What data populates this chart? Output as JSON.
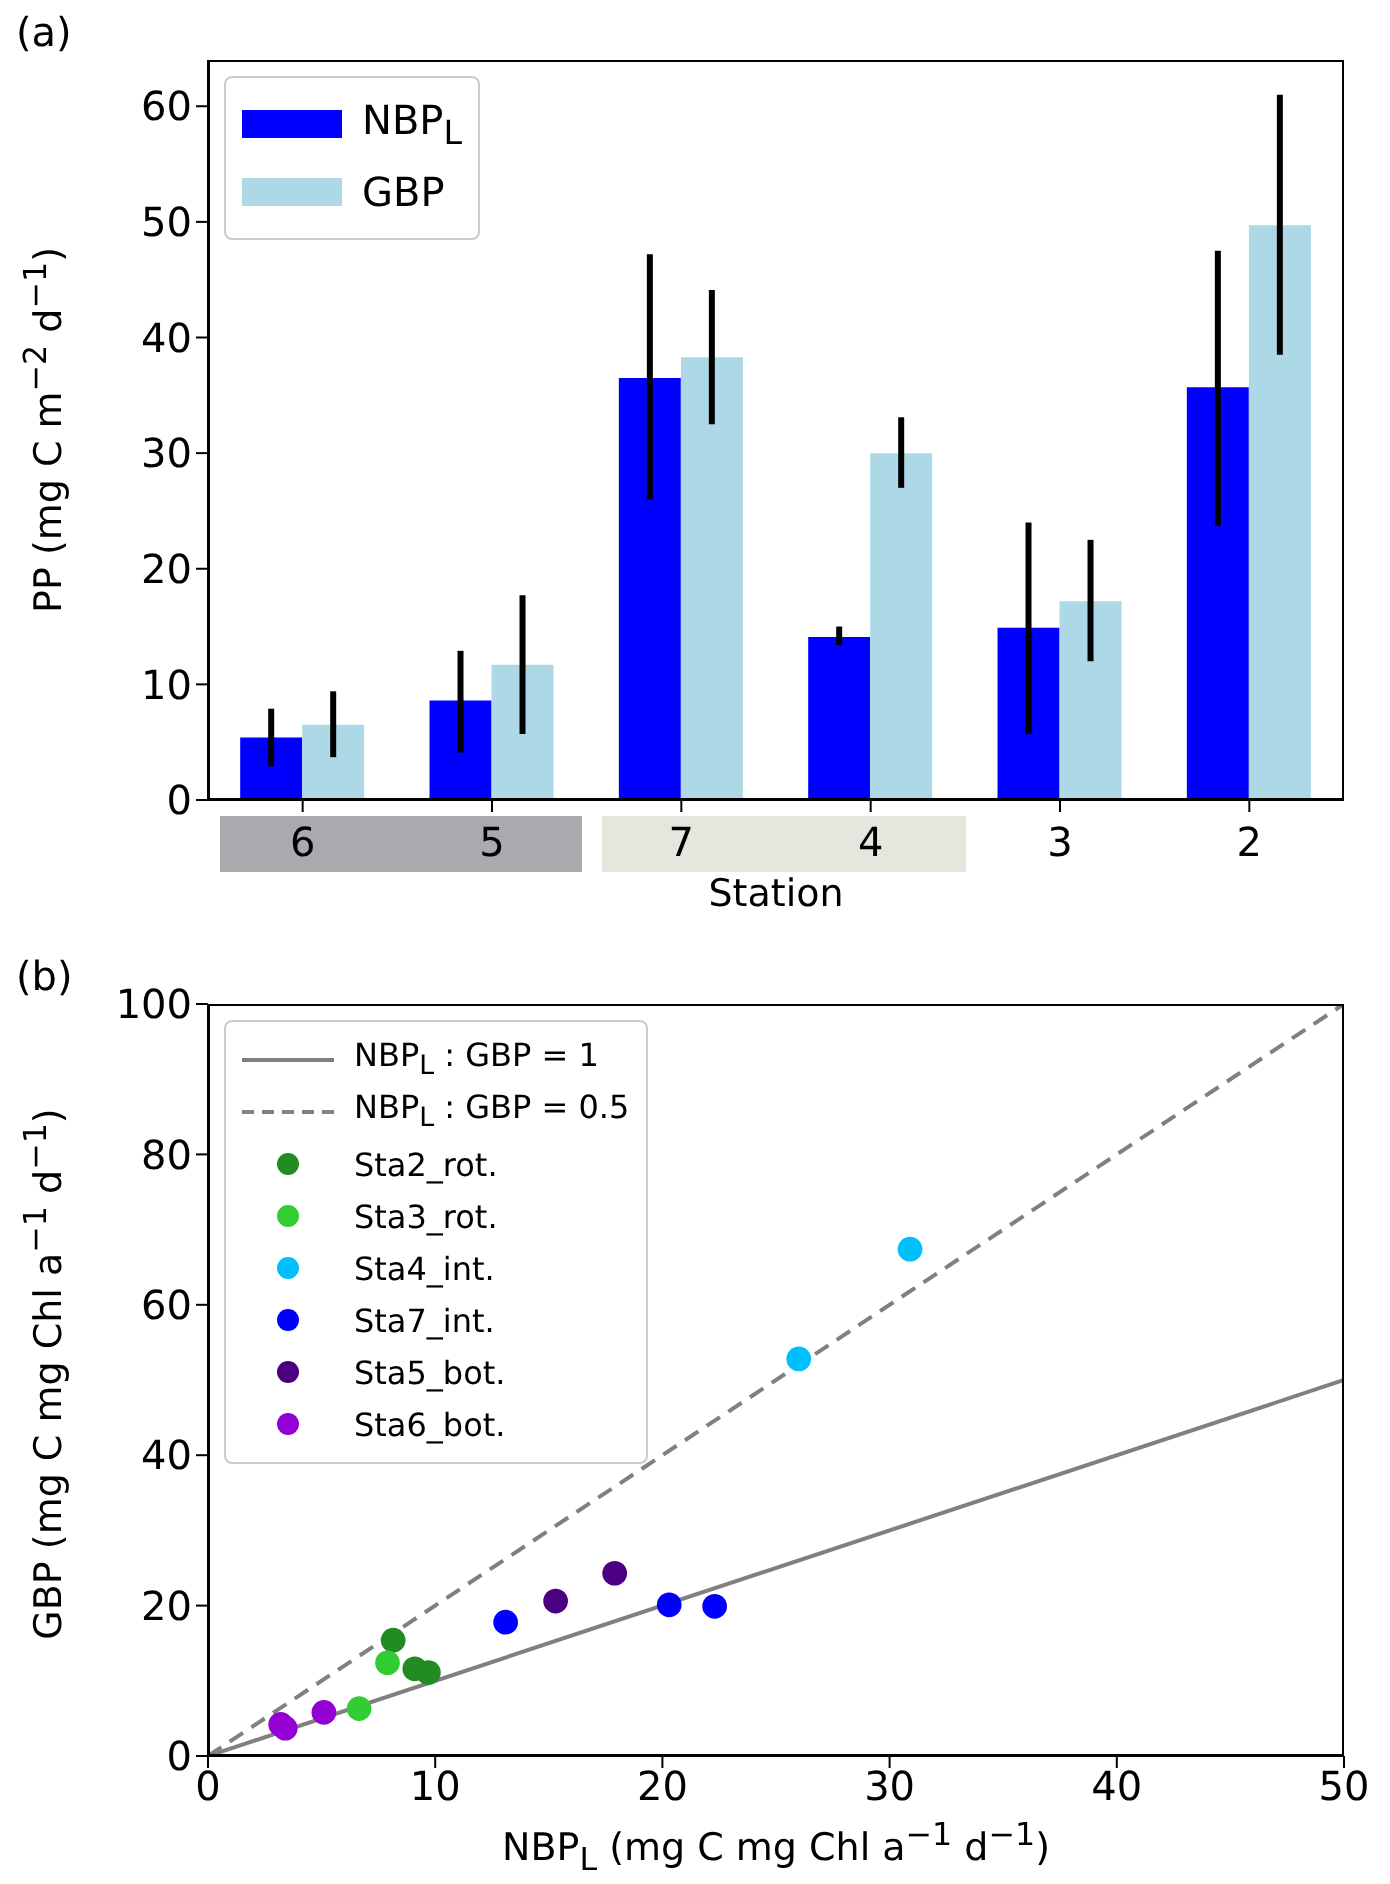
{
  "chart_data": [
    {
      "type": "bar",
      "title": "(a)",
      "xlabel": "Station",
      "ylabel": "PP (mg C m$^{−2}$ d$^{−1}$)",
      "categories": [
        "6",
        "5",
        "7",
        "4",
        "3",
        "2"
      ],
      "series": [
        {
          "name": "NBP$_{L}$",
          "color": "#0000ff",
          "values": [
            5.4,
            8.6,
            36.5,
            14.1,
            14.9,
            35.7
          ],
          "errors": [
            [
              2.9,
              7.9
            ],
            [
              4.1,
              12.9
            ],
            [
              26.0,
              47.2
            ],
            [
              13.4,
              15.0
            ],
            [
              5.7,
              24.0
            ],
            [
              23.7,
              47.5
            ]
          ]
        },
        {
          "name": "GBP",
          "color": "#add8e6",
          "values": [
            6.5,
            11.7,
            38.3,
            30.0,
            17.2,
            49.7
          ],
          "errors": [
            [
              3.7,
              9.4
            ],
            [
              5.7,
              17.7
            ],
            [
              32.5,
              44.1
            ],
            [
              27.0,
              33.1
            ],
            [
              12.0,
              22.5
            ],
            [
              38.5,
              61.0
            ]
          ]
        }
      ],
      "ylim": [
        0,
        64
      ],
      "yticks": [
        0,
        10,
        20,
        30,
        40,
        50,
        60
      ],
      "legend": "top left",
      "grid": false
    },
    {
      "type": "scatter",
      "title": "(b)",
      "xlabel": "NBP$_{L}$ (mg C mg Chl a$^{−1}$ d$^{−1}$)",
      "ylabel": "GBP (mg C mg Chl a$^{−1}$ d$^{−1}$)",
      "xlim": [
        0,
        50
      ],
      "xticks": [
        0,
        10,
        20,
        30,
        40,
        50
      ],
      "ylim": [
        0,
        100
      ],
      "yticks": [
        0,
        20,
        40,
        60,
        80,
        100
      ],
      "marker": "circle",
      "legend": "top left",
      "grid": false,
      "series": [
        {
          "name": "NBP$_{L}$ : GBP = 1",
          "type": "line",
          "marker": "none",
          "line_style": "solid",
          "color": "#808080",
          "x": [
            0,
            50
          ],
          "values": [
            0,
            50
          ]
        },
        {
          "name": "NBP$_{L}$ : GBP = 0.5",
          "type": "line",
          "marker": "none",
          "line_style": "dashed",
          "color": "#808080",
          "x": [
            0,
            50
          ],
          "values": [
            0,
            100
          ]
        },
        {
          "name": "Sta2_rot.",
          "color": "#228b22",
          "x": [
            8.15,
            9.1,
            9.7
          ],
          "values": [
            15.4,
            11.6,
            11.1
          ]
        },
        {
          "name": "Sta3_rot.",
          "color": "#32cd32",
          "x": [
            7.9,
            6.65
          ],
          "values": [
            12.4,
            6.3
          ]
        },
        {
          "name": "Sta4_int.",
          "color": "#00bfff",
          "x": [
            30.9,
            26.0
          ],
          "values": [
            67.4,
            52.8
          ]
        },
        {
          "name": "Sta7_int.",
          "color": "#0000ff",
          "x": [
            13.1,
            20.3,
            22.3
          ],
          "values": [
            17.8,
            20.1,
            19.9
          ]
        },
        {
          "name": "Sta5_bot.",
          "color": "#4b0082",
          "x": [
            15.3,
            17.9
          ],
          "values": [
            20.6,
            24.3
          ]
        },
        {
          "name": "Sta6_bot.",
          "color": "#9400d3",
          "x": [
            3.2,
            3.4,
            5.1
          ],
          "values": [
            4.2,
            3.7,
            5.8
          ]
        }
      ]
    }
  ]
}
